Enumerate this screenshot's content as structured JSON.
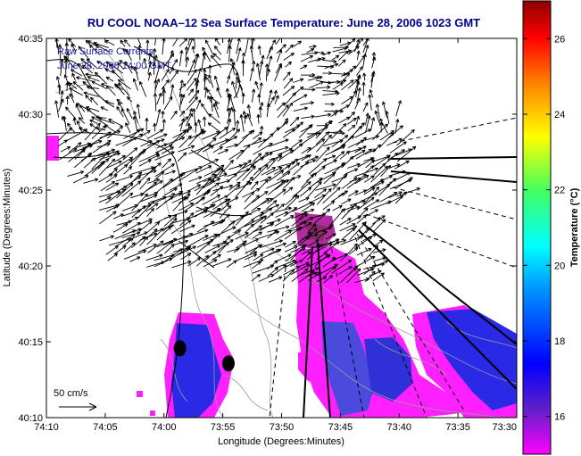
{
  "chart_data": {
    "type": "map",
    "title": "RU COOL   NOAA–12  Sea Surface Temperature:  June 28, 2006 1023 GMT",
    "xlabel": "Longitude (Degrees:Minutes)",
    "ylabel": "Latitude (Degrees:Minutes)",
    "x_ticks": [
      "74:10",
      "74:05",
      "74:00",
      "73:55",
      "73:50",
      "73:45",
      "73:40",
      "73:35",
      "73:30"
    ],
    "y_ticks": [
      "40:35",
      "40:30",
      "40:25",
      "40:20",
      "40:15",
      "40:10"
    ],
    "xlim": [
      -74.1667,
      -73.5
    ],
    "ylim": [
      40.1667,
      40.5833
    ],
    "annotation_lines": [
      "Raw Surface Currents",
      "June 28, 2006 14:00 GMT"
    ],
    "scale_label": "50 cm/s",
    "colorbar": {
      "label": "Temperature (°C)",
      "ticks": [
        "16",
        "18",
        "20",
        "22",
        "24",
        "26"
      ],
      "range": [
        15,
        27
      ]
    },
    "stations": [
      {
        "lon": -73.9774,
        "lat": 40.2429
      },
      {
        "lon": -73.9087,
        "lat": 40.2262
      }
    ]
  },
  "colors": {
    "title": "#00008b",
    "annotation": "#1a1aa6",
    "land": "#ffffff",
    "coast": "#000000",
    "bathymetry": "#9a9a9a",
    "vectors": "#000000"
  }
}
